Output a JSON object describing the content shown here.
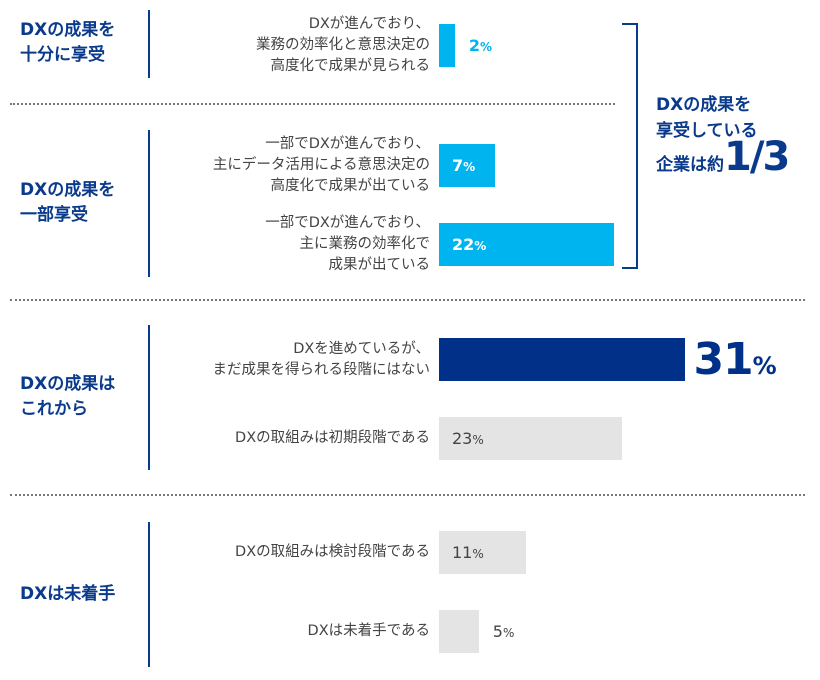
{
  "chart_data": {
    "type": "bar",
    "orientation": "horizontal",
    "unit": "%",
    "groups": [
      {
        "label": "DXの成果を\n十分に享受",
        "items": [
          {
            "label": "DXが進んでおり、\n業務の効率化と意思決定の\n高度化で成果が見られる",
            "value": 2,
            "display": "2",
            "color": "#00b4ef"
          }
        ]
      },
      {
        "label": "DXの成果を\n一部享受",
        "items": [
          {
            "label": "一部でDXが進んでおり、\n主にデータ活用による意思決定の\n高度化で成果が出ている",
            "value": 7,
            "display": "7",
            "color": "#00b4ef"
          },
          {
            "label": "一部でDXが進んでおり、\n主に業務の効率化で\n成果が出ている",
            "value": 22,
            "display": "22",
            "color": "#00b4ef"
          }
        ]
      },
      {
        "label": "DXの成果は\nこれから",
        "items": [
          {
            "label": "DXを進めているが、\nまだ成果を得られる段階にはない",
            "value": 31,
            "display": "31",
            "color": "#003087"
          },
          {
            "label": "DXの取組みは初期段階である",
            "value": 23,
            "display": "23",
            "color": "#e4e4e4"
          }
        ]
      },
      {
        "label": "DXは未着手",
        "items": [
          {
            "label": "DXの取組みは検討段階である",
            "value": 11,
            "display": "11",
            "color": "#e4e4e4"
          },
          {
            "label": "DXは未着手である",
            "value": 5,
            "display": "5",
            "color": "#e4e4e4"
          }
        ]
      }
    ],
    "annotation": {
      "line1": "DXの成果を",
      "line2": "享受している",
      "line3": "企業は約",
      "big": "1/3"
    }
  }
}
